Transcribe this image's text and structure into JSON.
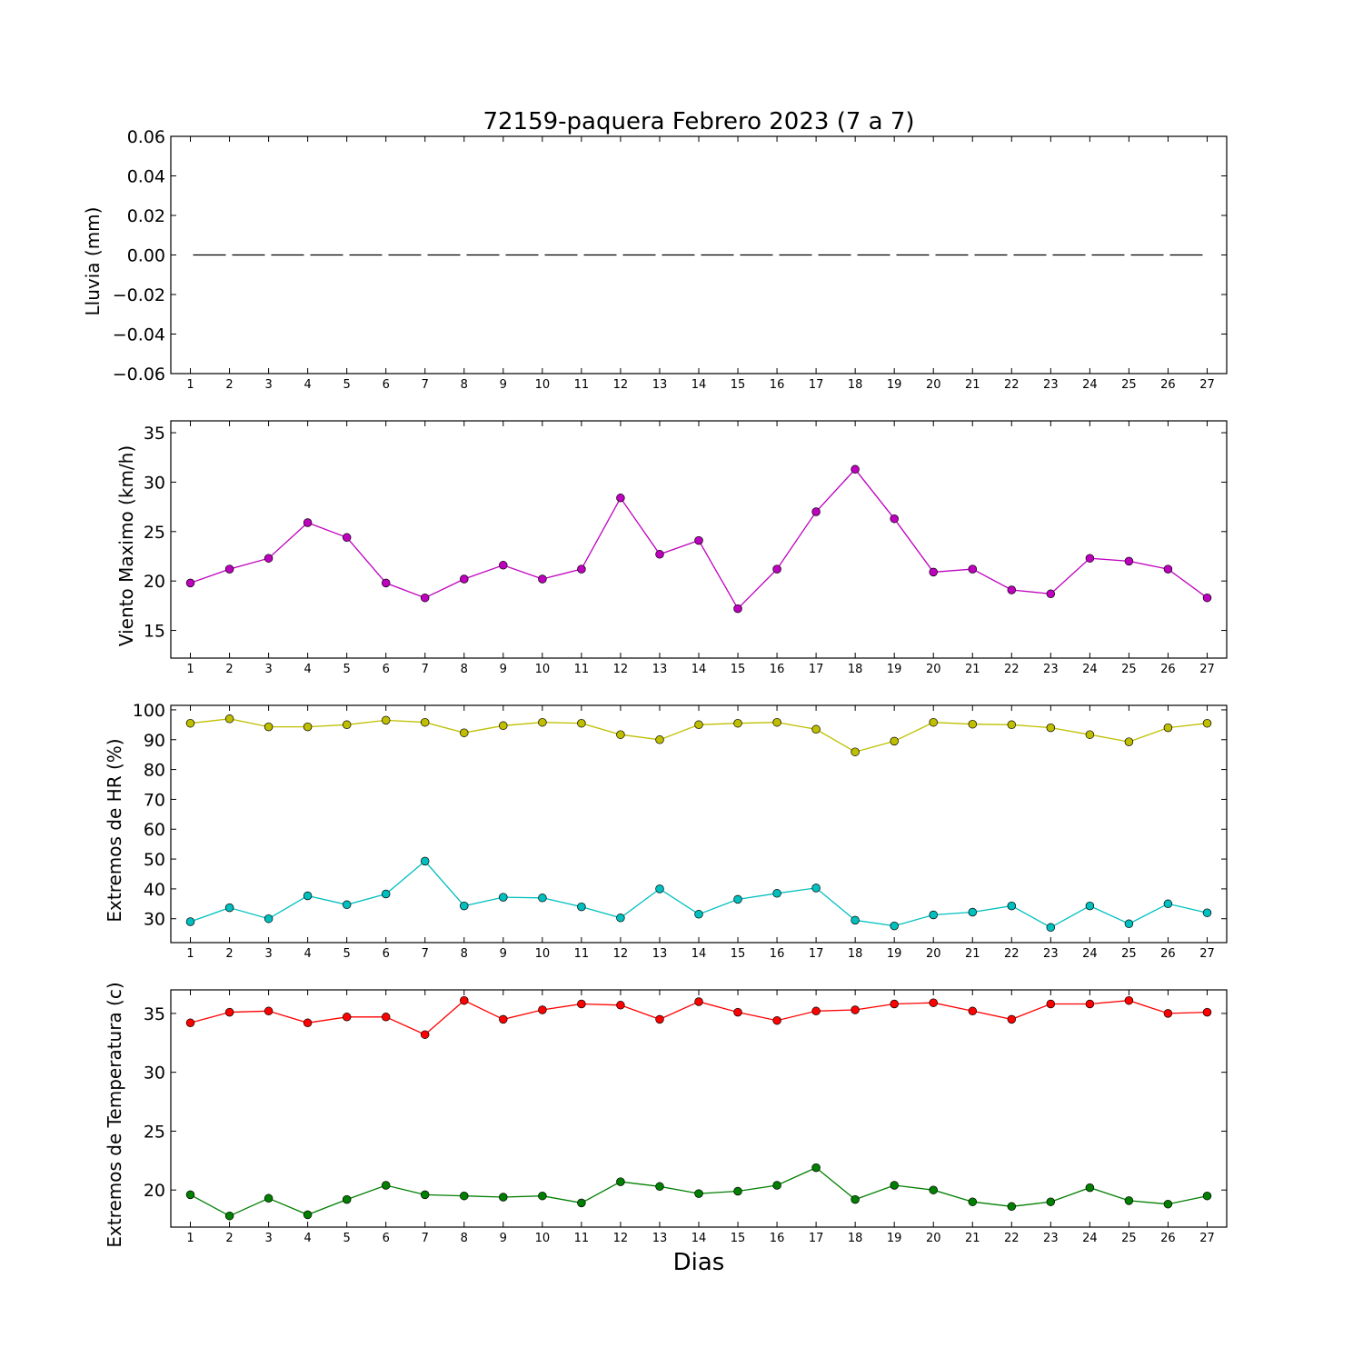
{
  "figure": {
    "title": "72159-paquera Febrero 2023  (7 a 7)",
    "xlabel": "Dias"
  },
  "chart_data": [
    {
      "type": "line",
      "ylabel": "Lluvia (mm)",
      "x": [
        1,
        2,
        3,
        4,
        5,
        6,
        7,
        8,
        9,
        10,
        11,
        12,
        13,
        14,
        15,
        16,
        17,
        18,
        19,
        20,
        21,
        22,
        23,
        24,
        25,
        26,
        27
      ],
      "xlim": [
        0.5,
        27.5
      ],
      "ylim": [
        -0.06,
        0.06
      ],
      "yticks": [
        0.06,
        0.04,
        0.02,
        0.0,
        -0.02,
        -0.04,
        -0.06
      ],
      "ytick_labels": [
        "0.06",
        "0.04",
        "0.02",
        "0.00",
        "−0.02",
        "−0.04",
        "−0.06"
      ],
      "grid": false,
      "series": [
        {
          "color": "#000000",
          "style": "dashed",
          "marker": false,
          "values": [
            0,
            0,
            0,
            0,
            0,
            0,
            0,
            0,
            0,
            0,
            0,
            0,
            0,
            0,
            0,
            0,
            0,
            0,
            0,
            0,
            0,
            0,
            0,
            0,
            0,
            0,
            0
          ]
        }
      ]
    },
    {
      "type": "line",
      "ylabel": "Viento Maximo (km/h)",
      "x": [
        1,
        2,
        3,
        4,
        5,
        6,
        7,
        8,
        9,
        10,
        11,
        12,
        13,
        14,
        15,
        16,
        17,
        18,
        19,
        20,
        21,
        22,
        23,
        24,
        25,
        26,
        27
      ],
      "xlim": [
        0.5,
        27.5
      ],
      "ylim": [
        12.2,
        36.2
      ],
      "yticks": [
        35,
        30,
        25,
        20,
        15
      ],
      "ytick_labels": [
        "35",
        "30",
        "25",
        "20",
        "15"
      ],
      "grid": false,
      "series": [
        {
          "color": "#bf00bf",
          "style": "solid",
          "marker": true,
          "values": [
            19.8,
            21.2,
            22.3,
            25.9,
            24.4,
            19.8,
            18.3,
            20.2,
            21.6,
            20.2,
            21.2,
            28.4,
            22.7,
            24.1,
            17.2,
            21.2,
            27.0,
            31.3,
            26.3,
            20.9,
            21.2,
            19.1,
            18.7,
            22.3,
            22.0,
            21.2,
            18.3
          ]
        }
      ]
    },
    {
      "type": "line",
      "ylabel": "Extremos de HR (%)",
      "x": [
        1,
        2,
        3,
        4,
        5,
        6,
        7,
        8,
        9,
        10,
        11,
        12,
        13,
        14,
        15,
        16,
        17,
        18,
        19,
        20,
        21,
        22,
        23,
        24,
        25,
        26,
        27
      ],
      "xlim": [
        0.5,
        27.5
      ],
      "ylim": [
        22,
        101.5
      ],
      "yticks": [
        100,
        90,
        80,
        70,
        60,
        50,
        40,
        30
      ],
      "ytick_labels": [
        "100",
        "90",
        "80",
        "70",
        "60",
        "50",
        "40",
        "30"
      ],
      "grid": false,
      "series": [
        {
          "color": "#bfbf00",
          "style": "solid",
          "marker": true,
          "values": [
            95.5,
            97,
            94.3,
            94.3,
            95,
            96.5,
            95.8,
            92.3,
            94.7,
            95.8,
            95.5,
            91.7,
            90,
            95,
            95.5,
            95.8,
            93.5,
            85.9,
            89.5,
            95.8,
            95.2,
            95,
            94,
            91.7,
            89.3,
            94,
            95.5
          ]
        },
        {
          "color": "#00bfbf",
          "style": "solid",
          "marker": true,
          "values": [
            29,
            33.7,
            30,
            37.7,
            34.7,
            38.3,
            49.3,
            34.3,
            37.2,
            37,
            34,
            30.3,
            40,
            31.5,
            36.5,
            38.5,
            40.3,
            29.5,
            27.6,
            31.3,
            32.2,
            34.3,
            27.1,
            34.3,
            28.3,
            35,
            32
          ]
        }
      ]
    },
    {
      "type": "line",
      "ylabel": "Extremos de Temperatura (c)",
      "x": [
        1,
        2,
        3,
        4,
        5,
        6,
        7,
        8,
        9,
        10,
        11,
        12,
        13,
        14,
        15,
        16,
        17,
        18,
        19,
        20,
        21,
        22,
        23,
        24,
        25,
        26,
        27
      ],
      "xlim": [
        0.5,
        27.5
      ],
      "ylim": [
        16.85,
        37.0
      ],
      "yticks": [
        35,
        30,
        25,
        20
      ],
      "ytick_labels": [
        "35",
        "30",
        "25",
        "20"
      ],
      "grid": false,
      "series": [
        {
          "color": "#ff0000",
          "style": "solid",
          "marker": true,
          "values": [
            34.2,
            35.1,
            35.2,
            34.2,
            34.7,
            34.7,
            33.2,
            36.1,
            34.5,
            35.3,
            35.8,
            35.7,
            34.5,
            36,
            35.1,
            34.4,
            35.2,
            35.3,
            35.8,
            35.9,
            35.2,
            34.5,
            35.8,
            35.8,
            36.1,
            35,
            35.1
          ]
        },
        {
          "color": "#007f00",
          "style": "solid",
          "marker": true,
          "values": [
            19.6,
            17.8,
            19.3,
            17.9,
            19.2,
            20.4,
            19.6,
            19.5,
            19.4,
            19.5,
            18.9,
            20.7,
            20.3,
            19.7,
            19.9,
            20.4,
            21.9,
            19.2,
            20.4,
            20,
            19,
            18.6,
            19,
            20.2,
            19.1,
            18.8,
            19.5
          ]
        }
      ]
    }
  ]
}
